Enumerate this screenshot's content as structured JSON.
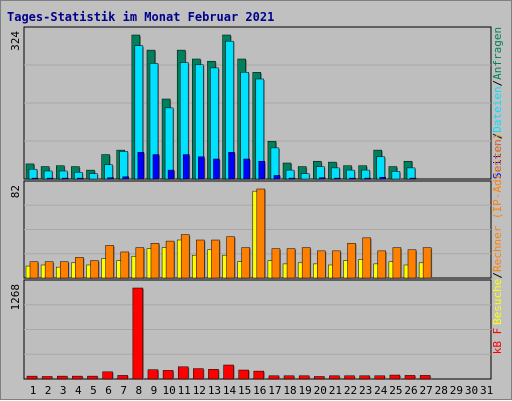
{
  "title": "Tages-Statistik im Monat Februar 2021",
  "days": [
    "1",
    "2",
    "3",
    "4",
    "5",
    "6",
    "7",
    "8",
    "9",
    "10",
    "11",
    "12",
    "13",
    "14",
    "15",
    "16",
    "17",
    "18",
    "19",
    "20",
    "21",
    "22",
    "23",
    "24",
    "25",
    "26",
    "27",
    "28",
    "29",
    "30",
    "31"
  ],
  "weekend_days": [
    "6",
    "7",
    "13",
    "14",
    "20",
    "21",
    "27",
    "28"
  ],
  "colors": {
    "background": "#c0c0c0",
    "plot_bg": "#bebebe",
    "anfragen": "#00805c",
    "dateien": "#00e0ff",
    "seiten": "#0000ff",
    "besuche": "#ffff00",
    "rechner": "#ff8000",
    "kbf": "#ff0000",
    "weekend": "#00805c",
    "title": "#00008b"
  },
  "chart_data": [
    {
      "type": "bar",
      "name": "top",
      "ymax_label": "324",
      "ylim": [
        0,
        324
      ],
      "legend": [
        "Seiten",
        "Dateien",
        "Anfragen"
      ],
      "series": [
        {
          "name": "Anfragen",
          "color": "#00805c",
          "values": [
            34,
            28,
            30,
            28,
            20,
            55,
            65,
            324,
            290,
            180,
            290,
            270,
            265,
            324,
            270,
            240,
            85,
            36,
            28,
            40,
            38,
            30,
            30,
            65,
            28,
            40,
            0,
            0,
            0,
            0,
            0
          ]
        },
        {
          "name": "Dateien",
          "color": "#00e0ff",
          "values": [
            22,
            18,
            18,
            15,
            12,
            32,
            62,
            300,
            260,
            160,
            262,
            257,
            250,
            310,
            240,
            225,
            70,
            20,
            12,
            28,
            25,
            20,
            20,
            50,
            17,
            25,
            0,
            0,
            0,
            0,
            0
          ]
        },
        {
          "name": "Seiten",
          "color": "#0000ff",
          "values": [
            2,
            2,
            2,
            2,
            1,
            3,
            5,
            60,
            55,
            20,
            55,
            50,
            45,
            60,
            45,
            40,
            8,
            2,
            1,
            3,
            2,
            2,
            2,
            4,
            1,
            2,
            0,
            0,
            0,
            0,
            0
          ]
        }
      ]
    },
    {
      "type": "bar",
      "name": "middle",
      "ymax_label": "82",
      "ylim": [
        0,
        82
      ],
      "legend": [
        "Besuche",
        "Rechner (IP-Adressen)"
      ],
      "series": [
        {
          "name": "Besuche",
          "color": "#ffff00",
          "values": [
            11,
            12,
            10,
            14,
            12,
            18,
            16,
            20,
            27,
            28,
            35,
            21,
            26,
            21,
            15,
            80,
            16,
            13,
            14,
            13,
            12,
            16,
            17,
            13,
            15,
            12,
            14,
            0,
            0,
            0,
            0
          ]
        },
        {
          "name": "Rechner (IP-Adressen)",
          "color": "#ff8000",
          "values": [
            15,
            15,
            15,
            19,
            16,
            30,
            24,
            28,
            32,
            34,
            40,
            35,
            35,
            38,
            28,
            82,
            27,
            27,
            28,
            25,
            25,
            32,
            37,
            25,
            28,
            26,
            28,
            0,
            0,
            0,
            0
          ]
        }
      ]
    },
    {
      "type": "bar",
      "name": "bottom",
      "ymax_label": "1268",
      "ylim": [
        0,
        1268
      ],
      "legend": [
        "kB F"
      ],
      "series": [
        {
          "name": "kB F",
          "color": "#ff0000",
          "values": [
            40,
            35,
            40,
            40,
            40,
            100,
            50,
            1268,
            130,
            120,
            170,
            145,
            135,
            195,
            125,
            110,
            45,
            45,
            45,
            35,
            45,
            45,
            45,
            45,
            55,
            50,
            50,
            0,
            0,
            0,
            0
          ]
        }
      ]
    }
  ]
}
